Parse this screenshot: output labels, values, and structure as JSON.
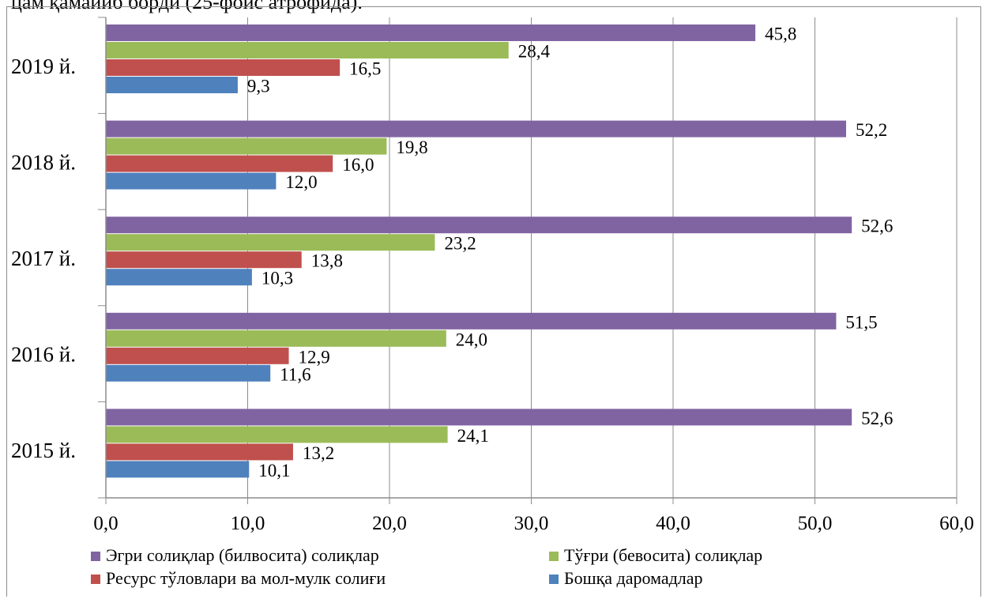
{
  "page": {
    "top_text": "цам қамайиб борди (25-фойс атрофида)."
  },
  "chart_data": {
    "type": "bar",
    "orientation": "horizontal",
    "categories": [
      "2019 й.",
      "2018 й.",
      "2017 й.",
      "2016 й.",
      "2015 й."
    ],
    "series": [
      {
        "name": "Эгри солиқлар (билвосита) солиқлар",
        "color": "#8064a2",
        "values": [
          45.8,
          52.2,
          52.6,
          51.5,
          52.6
        ],
        "labels": [
          "45,8",
          "52,2",
          "52,6",
          "51,5",
          "52,6"
        ]
      },
      {
        "name": "Тўғри (бевосита) солиқлар",
        "color": "#9bbb59",
        "values": [
          28.4,
          19.8,
          23.2,
          24.0,
          24.1
        ],
        "labels": [
          "28,4",
          "19,8",
          "23,2",
          "24,0",
          "24,1"
        ]
      },
      {
        "name": "Ресурс тўловлари ва мол-мулк солиғи",
        "color": "#c0504d",
        "values": [
          16.5,
          16.0,
          13.8,
          12.9,
          13.2
        ],
        "labels": [
          "16,5",
          "16,0",
          "13,8",
          "12,9",
          "13,2"
        ]
      },
      {
        "name": "Бошқа даромадлар",
        "color": "#4f81bd",
        "values": [
          9.3,
          12.0,
          10.3,
          11.6,
          10.1
        ],
        "labels": [
          "9,3",
          "12,0",
          "10,3",
          "11,6",
          "10,1"
        ]
      }
    ],
    "xlim": [
      0,
      60
    ],
    "xticks": [
      0,
      10,
      20,
      30,
      40,
      50,
      60
    ],
    "xtick_labels": [
      "0,0",
      "10,0",
      "20,0",
      "30,0",
      "40,0",
      "50,0",
      "60,0"
    ],
    "grid": "vertical",
    "legend_position": "bottom"
  }
}
